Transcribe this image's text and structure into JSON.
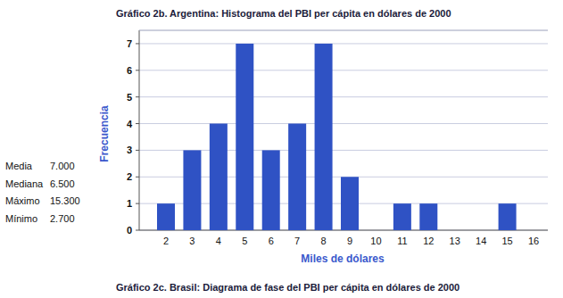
{
  "chart_data": {
    "type": "bar",
    "title": "Gráfico 2b. Argentina: Histograma del PBI per cápita en dólares de 2000",
    "x_label": "Miles de dólares",
    "y_label": "Frecuencia",
    "categories": [
      "2",
      "3",
      "4",
      "5",
      "6",
      "7",
      "8",
      "9",
      "10",
      "11",
      "12",
      "13",
      "14",
      "15",
      "16"
    ],
    "values": [
      1,
      3,
      4,
      7,
      3,
      4,
      7,
      2,
      0,
      1,
      1,
      0,
      0,
      1,
      0
    ],
    "color": "#2f52c4",
    "ylim": [
      0,
      7.5
    ],
    "yticks": [
      0,
      1,
      2,
      3,
      4,
      5,
      6,
      7
    ],
    "grid": true,
    "annotations": [
      {
        "label": "Media",
        "value": "7.000"
      },
      {
        "label": "Mediana",
        "value": "6.500"
      },
      {
        "label": "Máximo",
        "value": "15.300"
      },
      {
        "label": "Mínimo",
        "value": "2.700"
      }
    ],
    "footnote": "Gráfico 2c. Brasil: Diagrama de fase del PBI per cápita en dólares de 2000"
  }
}
